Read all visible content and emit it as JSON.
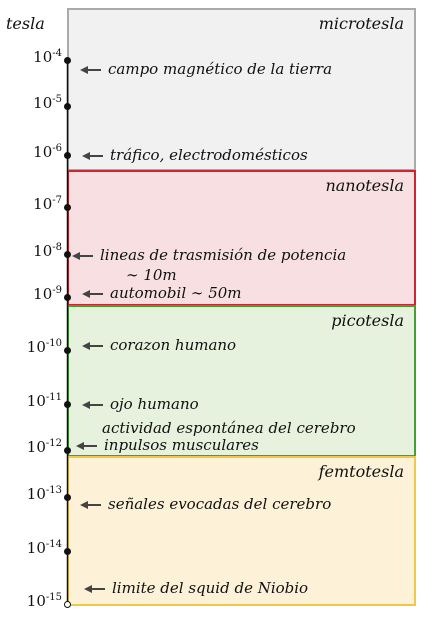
{
  "axis": {
    "unit_label": "tesla",
    "base": "10"
  },
  "bands": [
    {
      "id": "micro",
      "title": "microtesla",
      "fill": "#f1f1f1",
      "border": "#aaaaaa"
    },
    {
      "id": "nano",
      "title": "nanotesla",
      "fill": "#f8e0e2",
      "border": "#cc2630"
    },
    {
      "id": "pico",
      "title": "picotesla",
      "fill": "#e6f2de",
      "border": "#44a035"
    },
    {
      "id": "femto",
      "title": "femtotesla",
      "fill": "#fdf1d8",
      "border": "#f0c84a"
    }
  ],
  "ticks": [
    {
      "exponent": "-4"
    },
    {
      "exponent": "-5"
    },
    {
      "exponent": "-6"
    },
    {
      "exponent": "-7"
    },
    {
      "exponent": "-8"
    },
    {
      "exponent": "-9"
    },
    {
      "exponent": "-10"
    },
    {
      "exponent": "-11"
    },
    {
      "exponent": "-12"
    },
    {
      "exponent": "-13"
    },
    {
      "exponent": "-14"
    },
    {
      "exponent": "-15"
    }
  ],
  "annotations": [
    {
      "text": "campo magnético de la tierra"
    },
    {
      "text": "tráfico, electrodomésticos"
    },
    {
      "text": "lineas de trasmisión de potencia"
    },
    {
      "text": "∼ 10m"
    },
    {
      "text": "automobil  ∼ 50m"
    },
    {
      "text": "corazon humano"
    },
    {
      "text": "ojo humano"
    },
    {
      "text": "actividad espontánea del cerebro"
    },
    {
      "text": "inpulsos musculares"
    },
    {
      "text": "señales evocadas del cerebro"
    },
    {
      "text": "limite del squid de Niobio"
    }
  ],
  "colors": {
    "axis": "#111111",
    "arrow": "#444444"
  }
}
